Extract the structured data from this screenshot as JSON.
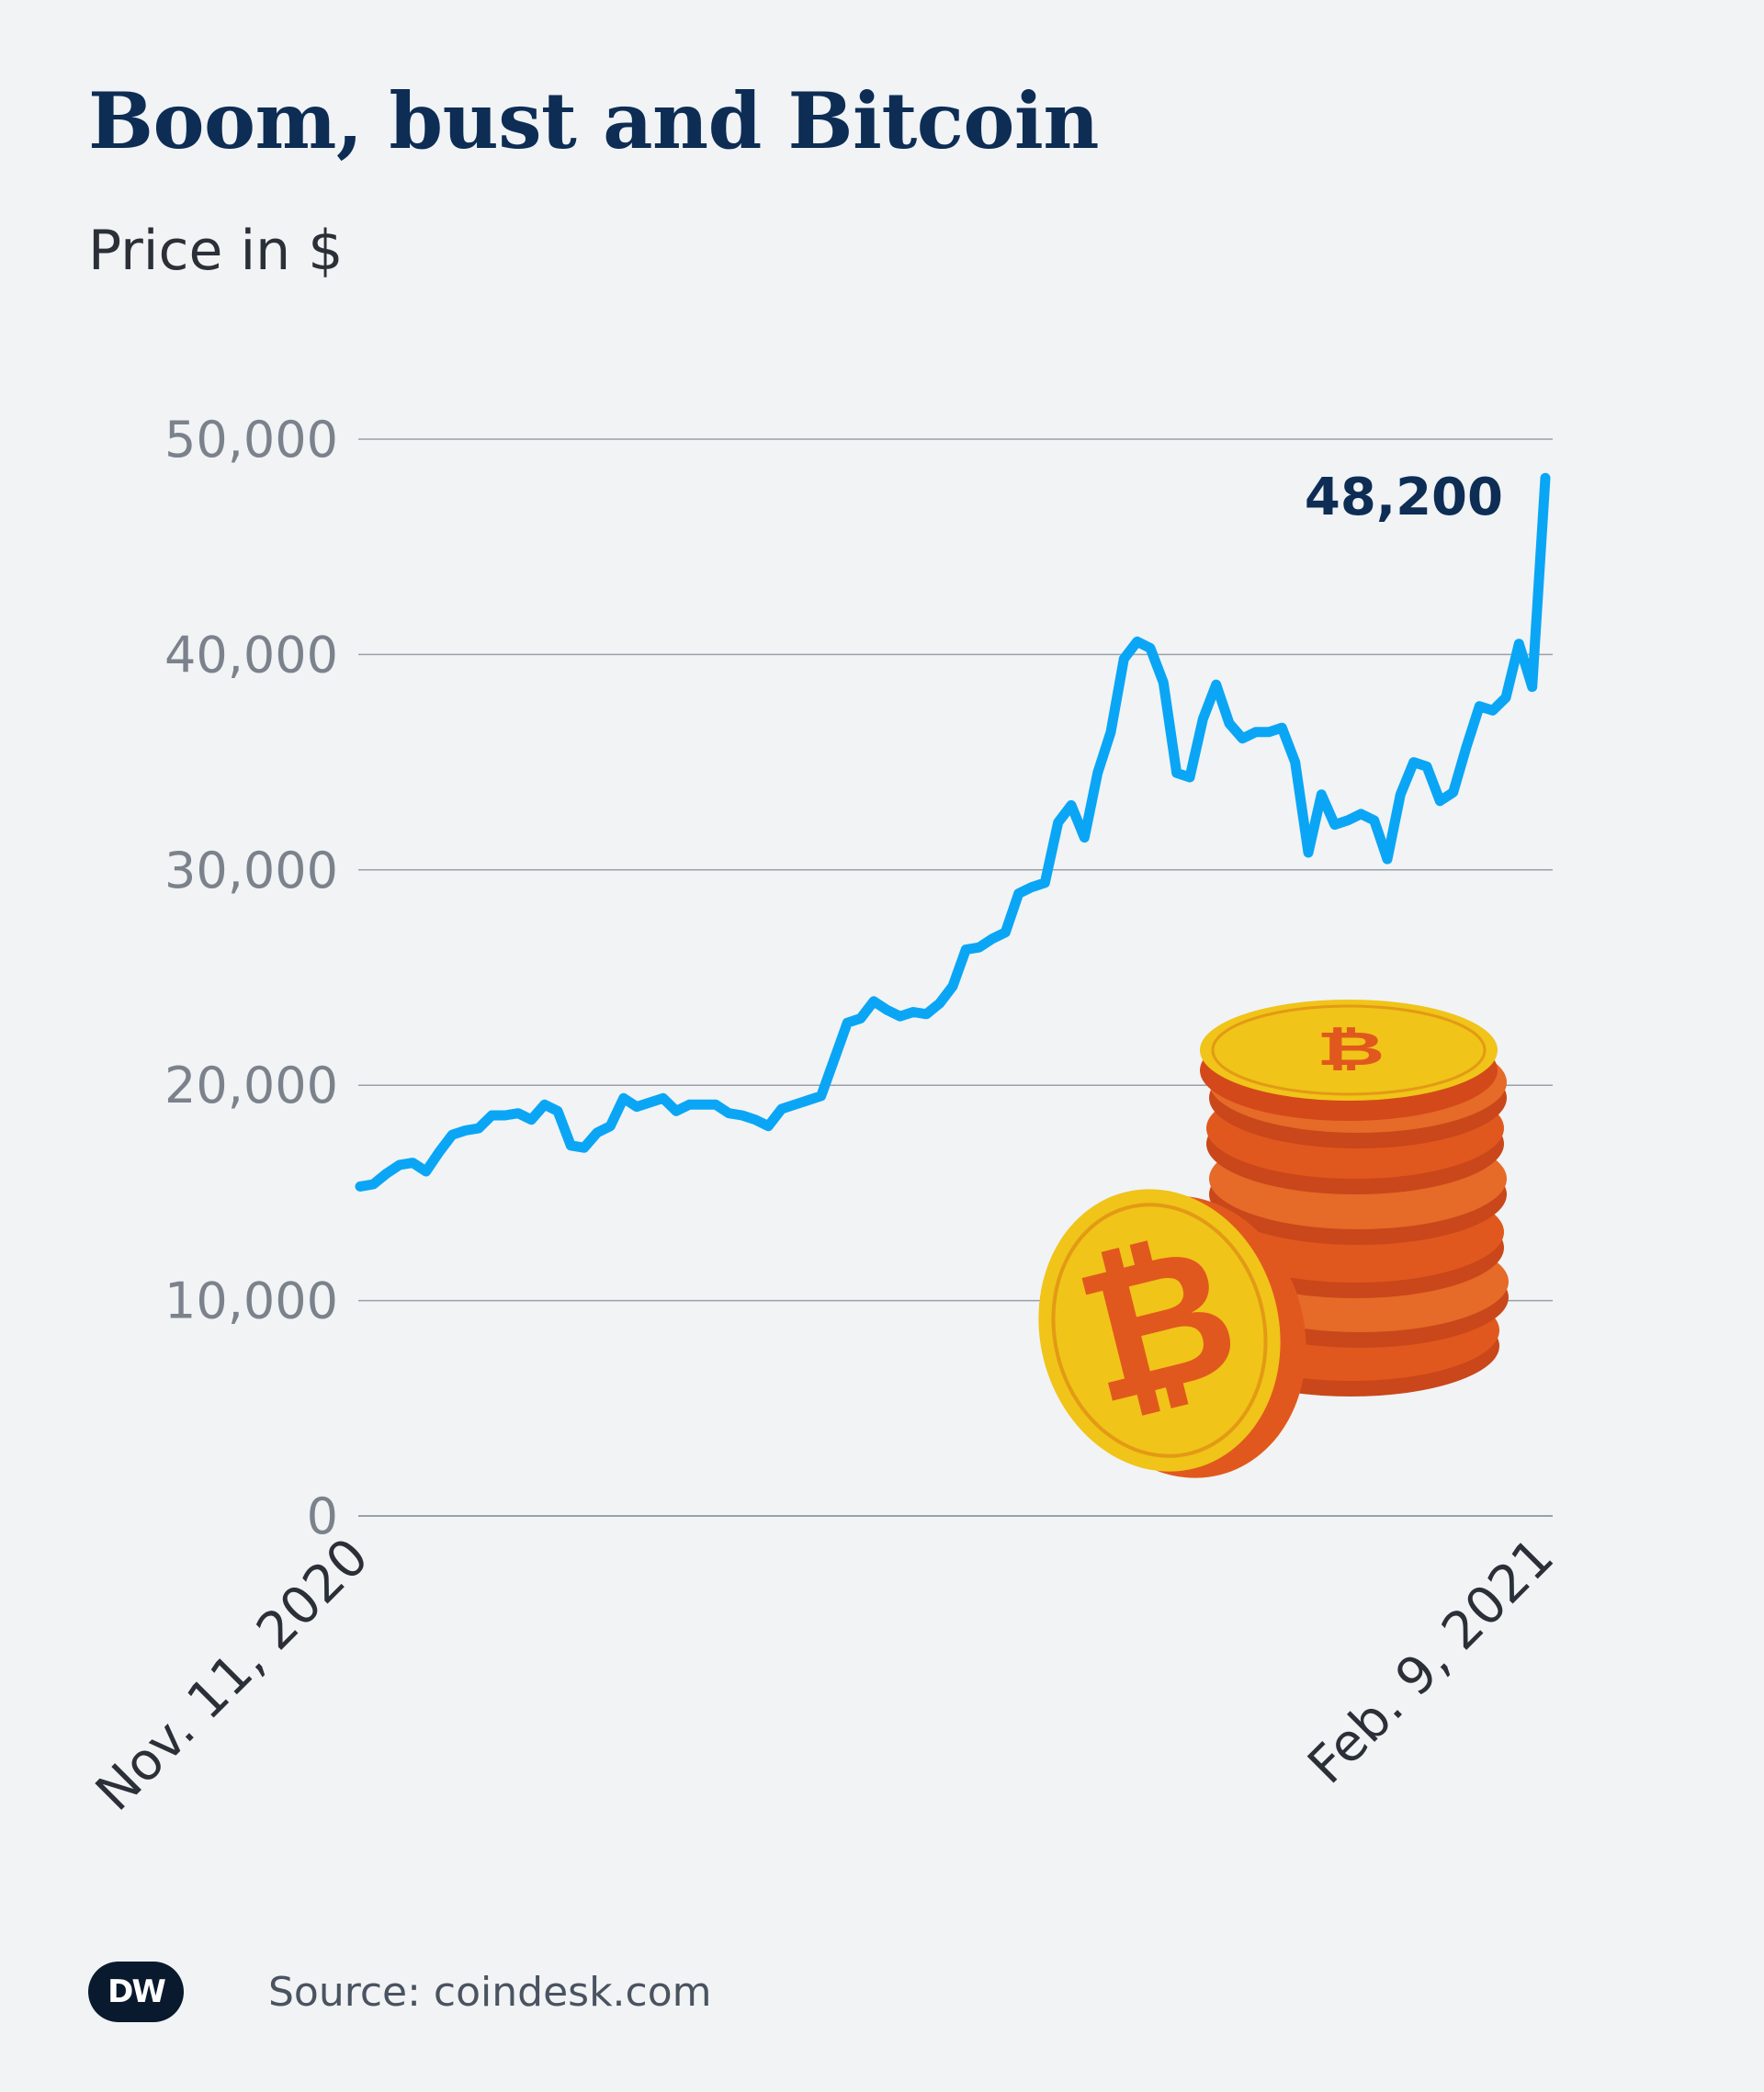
{
  "header": {
    "title": "Boom, bust and Bitcoin",
    "subtitle": "Price in $"
  },
  "footer": {
    "logo_text": "DW",
    "source": "Source: coindesk.com"
  },
  "colors": {
    "line": "#0aa6f5",
    "title": "#0d2d55",
    "annotation": "#0d2d55",
    "grid": "#9aa0a8",
    "tick": "#7b828c",
    "background": "#f1f3f5",
    "coin_gold": "#f0c419",
    "coin_orange": "#e1581e"
  },
  "decoration": {
    "icon": "bitcoin-coins-icon"
  },
  "chart_data": {
    "type": "line",
    "title": "Boom, bust and Bitcoin",
    "ylabel": "Price in $",
    "ylim": [
      0,
      50000
    ],
    "yticks": [
      0,
      10000,
      20000,
      30000,
      40000,
      50000
    ],
    "ytick_labels": [
      "0",
      "10,000",
      "20,000",
      "30,000",
      "40,000",
      "50,000"
    ],
    "xlim": [
      "2020-11-11",
      "2021-02-09"
    ],
    "xtick_labels": [
      "Nov. 11, 2020",
      "Feb. 9, 2021"
    ],
    "grid": true,
    "annotation": {
      "text": "48,200",
      "value": 48200,
      "date": "2021-02-09"
    },
    "series": [
      {
        "x": [
          "2020-11-11",
          "2020-11-12",
          "2020-11-13",
          "2020-11-14",
          "2020-11-15",
          "2020-11-16",
          "2020-11-17",
          "2020-11-18",
          "2020-11-19",
          "2020-11-20",
          "2020-11-21",
          "2020-11-22",
          "2020-11-23",
          "2020-11-24",
          "2020-11-25",
          "2020-11-26",
          "2020-11-27",
          "2020-11-28",
          "2020-11-29",
          "2020-11-30",
          "2020-12-01",
          "2020-12-02",
          "2020-12-03",
          "2020-12-04",
          "2020-12-05",
          "2020-12-06",
          "2020-12-07",
          "2020-12-08",
          "2020-12-09",
          "2020-12-10",
          "2020-12-11",
          "2020-12-12",
          "2020-12-13",
          "2020-12-14",
          "2020-12-15",
          "2020-12-16",
          "2020-12-17",
          "2020-12-18",
          "2020-12-19",
          "2020-12-20",
          "2020-12-21",
          "2020-12-22",
          "2020-12-23",
          "2020-12-24",
          "2020-12-25",
          "2020-12-26",
          "2020-12-27",
          "2020-12-28",
          "2020-12-29",
          "2020-12-30",
          "2020-12-31",
          "2021-01-01",
          "2021-01-02",
          "2021-01-03",
          "2021-01-04",
          "2021-01-05",
          "2021-01-06",
          "2021-01-07",
          "2021-01-08",
          "2021-01-09",
          "2021-01-10",
          "2021-01-11",
          "2021-01-12",
          "2021-01-13",
          "2021-01-14",
          "2021-01-15",
          "2021-01-16",
          "2021-01-17",
          "2021-01-18",
          "2021-01-19",
          "2021-01-20",
          "2021-01-21",
          "2021-01-22",
          "2021-01-23",
          "2021-01-24",
          "2021-01-25",
          "2021-01-26",
          "2021-01-27",
          "2021-01-28",
          "2021-01-29",
          "2021-01-30",
          "2021-01-31",
          "2021-02-01",
          "2021-02-02",
          "2021-02-03",
          "2021-02-04",
          "2021-02-05",
          "2021-02-06",
          "2021-02-07",
          "2021-02-08",
          "2021-02-09"
        ],
        "values": [
          15300,
          15400,
          15900,
          16300,
          16400,
          16000,
          16900,
          17700,
          17900,
          18000,
          18600,
          18600,
          18700,
          18400,
          19100,
          18800,
          17200,
          17100,
          17800,
          18100,
          19400,
          19000,
          19200,
          19400,
          18800,
          19100,
          19100,
          19100,
          18700,
          18600,
          18400,
          18100,
          18900,
          19100,
          19300,
          19500,
          21200,
          22900,
          23100,
          23900,
          23500,
          23200,
          23400,
          23300,
          23800,
          24600,
          26300,
          26400,
          26800,
          27100,
          28900,
          29200,
          29400,
          32200,
          33000,
          31500,
          34500,
          36400,
          39800,
          40600,
          40300,
          38700,
          34500,
          34300,
          37000,
          38600,
          36800,
          36100,
          36400,
          36400,
          36600,
          35000,
          30800,
          33500,
          32100,
          32300,
          32600,
          32300,
          30500,
          33500,
          35000,
          34800,
          33200,
          33600,
          35700,
          37600,
          37400,
          38000,
          40500,
          38500,
          48200
        ]
      }
    ]
  }
}
